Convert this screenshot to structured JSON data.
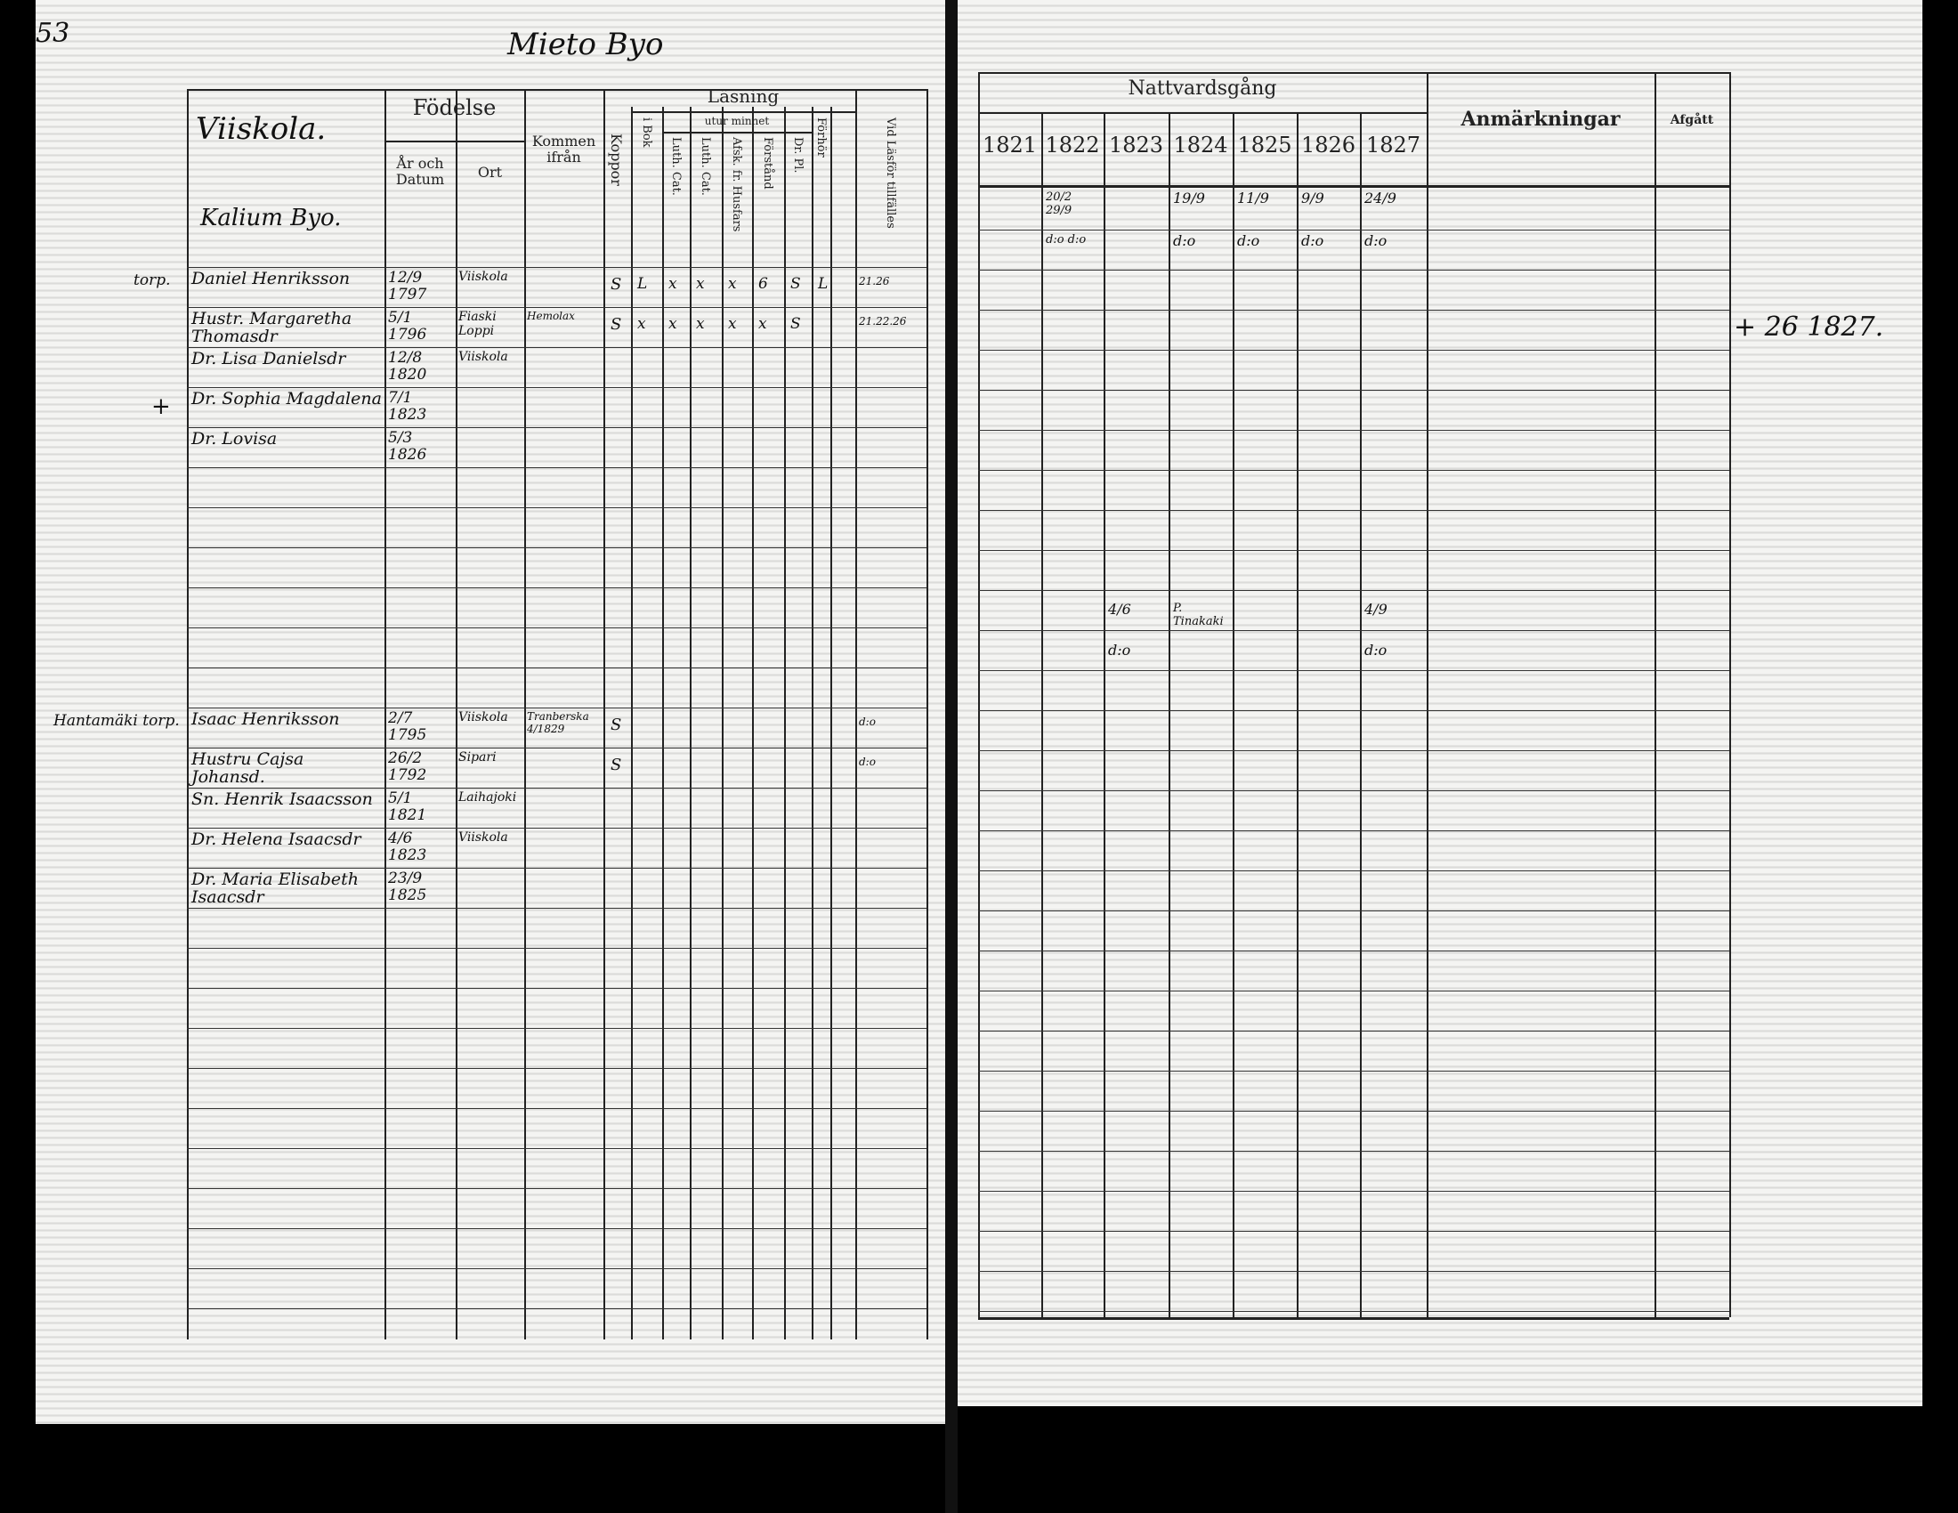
{
  "page_number": "53",
  "village_title": "Mieto Byo",
  "left_table": {
    "place_heading": "Viiskola.",
    "place_subheading": "Kalium Byo.",
    "headers": {
      "fodelse": "Födelse",
      "ar_och_datum": "År och Datum",
      "ort": "Ort",
      "kommen_ifran": "Kommen ifrån",
      "koppor": "Koppor",
      "lasning": "Läsning",
      "utur_minnet": "utur minnet",
      "i_bok": "i Bok",
      "catechism_col": "Luth. Cat.",
      "col_a": "Luth. Cat.",
      "col_b": "Afsk. fr. Husfars",
      "forstand": "Förstånd",
      "dr_pl": "Dr. Pl.",
      "forhor": "Förhör",
      "vid_lasf": "Vid Läsför tillfälles"
    },
    "groups": [
      {
        "label": "torp.",
        "cross": "",
        "entries": [
          {
            "name": "Daniel Henriksson",
            "date": "12/9 1797",
            "place": "Viiskola",
            "from": "",
            "koppor": "S",
            "lasning": [
              "L",
              "x",
              "x",
              "x",
              "6",
              "S",
              "L"
            ],
            "vid_lasf": "21.26"
          },
          {
            "name": "Hustr. Margaretha Thomasdr",
            "date": "5/1 1796",
            "place": "Fiaski Loppi",
            "from": "Hemolax",
            "koppor": "S",
            "lasning": [
              "x",
              "x",
              "x",
              "x",
              "x",
              "S",
              ""
            ],
            "vid_lasf": "21.22.26"
          },
          {
            "name": "Dr. Lisa Danielsdr",
            "date": "12/8 1820",
            "place": "Viiskola",
            "from": "",
            "koppor": "",
            "lasning": [],
            "vid_lasf": ""
          },
          {
            "name": "Dr. Sophia Magdalena",
            "date": "7/1 1823",
            "place": "",
            "from": "",
            "koppor": "",
            "lasning": [],
            "vid_lasf": "",
            "cross": "+"
          },
          {
            "name": "Dr. Lovisa",
            "date": "5/3 1826",
            "place": "",
            "from": "",
            "koppor": "",
            "lasning": [],
            "vid_lasf": ""
          }
        ]
      },
      {
        "label": "Hantamäki torp.",
        "entries": [
          {
            "name": "Isaac Henriksson",
            "date": "2/7 1795",
            "place": "Viiskola",
            "from": "Tranberska 4/1829",
            "koppor": "S",
            "lasning": [],
            "vid_lasf": "d:o"
          },
          {
            "name": "Hustru Cajsa Johansd.",
            "date": "26/2 1792",
            "place": "Sipari",
            "from": "",
            "koppor": "S",
            "lasning": [],
            "vid_lasf": "d:o"
          },
          {
            "name": "Sn. Henrik Isaacsson",
            "date": "5/1 1821",
            "place": "Laihajoki",
            "from": "",
            "koppor": "",
            "lasning": [],
            "vid_lasf": ""
          },
          {
            "name": "Dr. Helena Isaacsdr",
            "date": "4/6 1823",
            "place": "Viiskola",
            "from": "",
            "koppor": "",
            "lasning": [],
            "vid_lasf": ""
          },
          {
            "name": "Dr. Maria Elisabeth Isaacsdr",
            "date": "23/9 1825",
            "place": "",
            "from": "",
            "koppor": "",
            "lasning": [],
            "vid_lasf": ""
          }
        ]
      }
    ]
  },
  "right_table": {
    "nattvardsgang": "Nattvardsgång",
    "years": [
      "1821",
      "1822",
      "1823",
      "1824",
      "1825",
      "1826",
      "1827"
    ],
    "anmarkningar": "Anmärkningar",
    "afgatt": "Afgått",
    "rows": [
      {
        "cells": [
          "",
          "20/2  29/9",
          "",
          "19/9",
          "11/9",
          "9/9",
          "24/9"
        ]
      },
      {
        "cells": [
          "",
          "d:o  d:o",
          "",
          "d:o",
          "d:o",
          "d:o",
          "d:o"
        ]
      },
      {
        "cells": [
          "",
          "",
          "",
          "",
          "",
          "",
          ""
        ],
        "afgatt": "+ 26 1827."
      },
      {
        "cells": [
          "",
          "",
          "4/6",
          "P. Tinakaki",
          "",
          "",
          "4/9"
        ]
      },
      {
        "cells": [
          "",
          "",
          "d:o",
          "",
          "",
          "",
          "d:o"
        ]
      }
    ]
  }
}
